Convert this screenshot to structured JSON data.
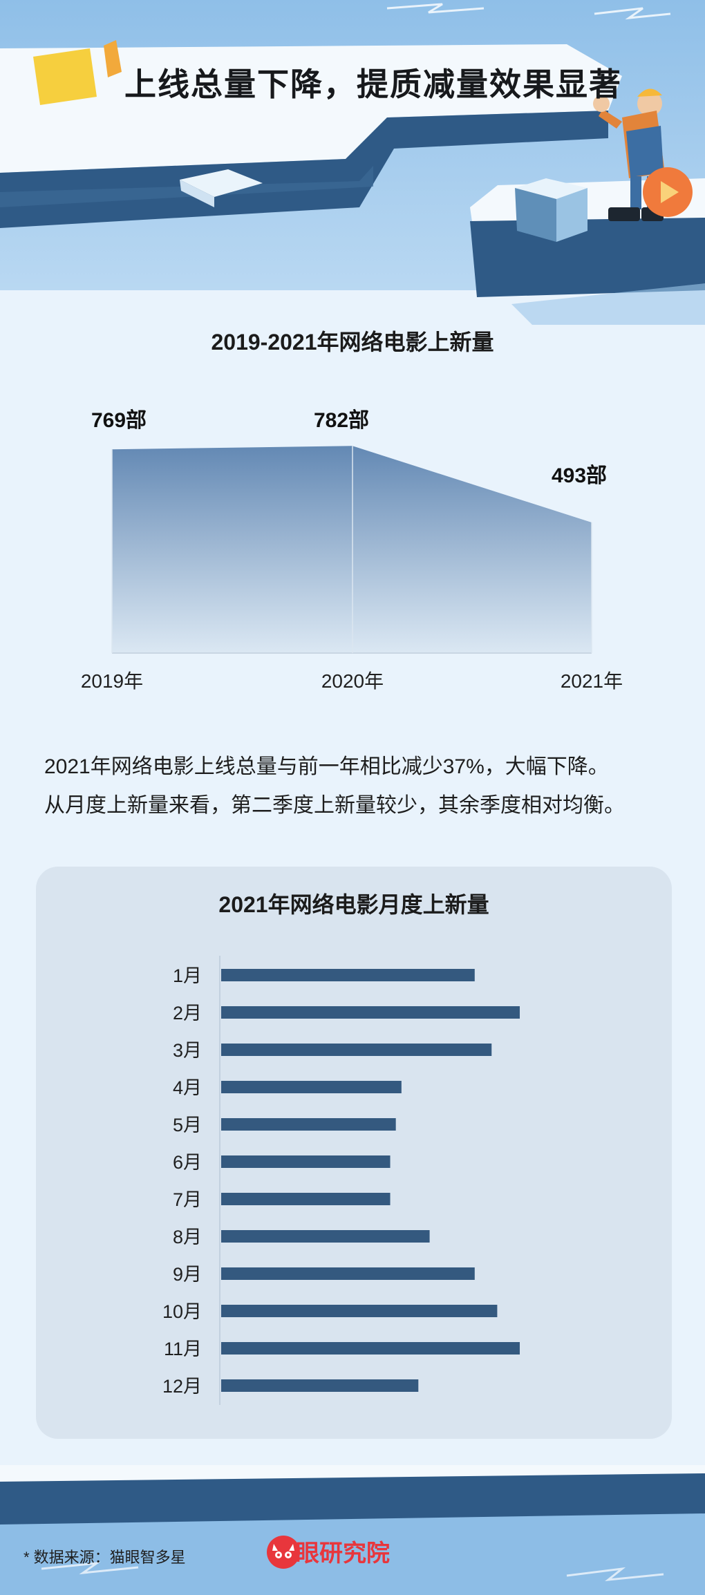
{
  "header": {
    "title": "上线总量下降，提质减量效果显著"
  },
  "area_chart_title": "2019-2021年网络电影上新量",
  "description": [
    "2021年网络电影上线总量与前一年相比减少37%，大幅下降。",
    "从月度上新量来看，第二季度上新量较少，其余季度相对均衡。"
  ],
  "bar_chart_title": "2021年网络电影月度上新量",
  "chart_data": [
    {
      "type": "area",
      "title": "2019-2021年网络电影上新量",
      "categories": [
        "2019年",
        "2020年",
        "2021年"
      ],
      "values": [
        769,
        782,
        493
      ],
      "value_labels": [
        "769部",
        "782部",
        "493部"
      ],
      "grid": false,
      "color": "#5c83b0"
    },
    {
      "type": "bar",
      "orientation": "horizontal",
      "title": "2021年网络电影月度上新量",
      "categories": [
        "1月",
        "2月",
        "3月",
        "4月",
        "5月",
        "6月",
        "7月",
        "8月",
        "9月",
        "10月",
        "11月",
        "12月"
      ],
      "values": [
        45,
        53,
        48,
        32,
        31,
        30,
        30,
        37,
        45,
        49,
        53,
        35
      ],
      "grid": false,
      "color": "#34597f"
    }
  ],
  "footer": {
    "source": "* 数据来源：猫眼智多星",
    "brand": "猫眼研究院"
  },
  "colors": {
    "background": "#e9f3fc",
    "ice_dark": "#2f5a86",
    "sky": "#8dbde6",
    "brand_red": "#e8363c"
  }
}
